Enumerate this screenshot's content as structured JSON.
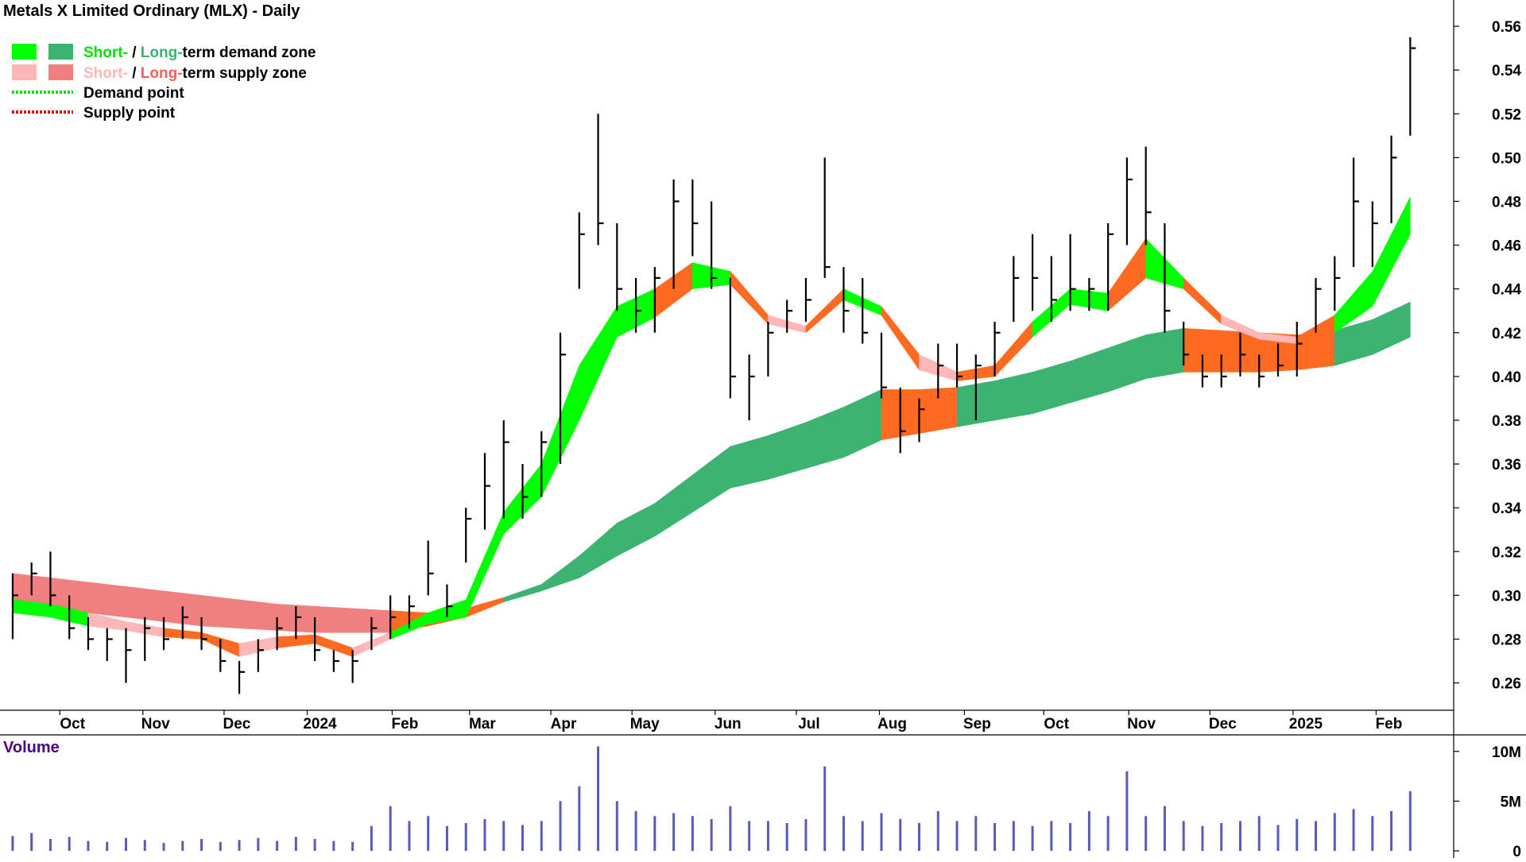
{
  "chart_data": {
    "type": "ohlc",
    "title": "Metals X Limited Ordinary (MLX) - Daily",
    "legend": [
      {
        "swatches": [
          "#00ff00",
          "#3cb371"
        ],
        "parts": [
          {
            "text": "Short-",
            "color": "#00e000"
          },
          {
            "text": " / ",
            "color": "#000000"
          },
          {
            "text": "Long-",
            "color": "#3cb371"
          },
          {
            "text": "term demand zone",
            "color": "#000000"
          }
        ]
      },
      {
        "swatches": [
          "#ffb6b6",
          "#f08080"
        ],
        "parts": [
          {
            "text": "Short-",
            "color": "#ffb6b6"
          },
          {
            "text": " / ",
            "color": "#000000"
          },
          {
            "text": "Long-",
            "color": "#f06060"
          },
          {
            "text": "term supply zone",
            "color": "#000000"
          }
        ]
      },
      {
        "line": "#00e000",
        "parts": [
          {
            "text": "Demand point",
            "color": "#000000"
          }
        ]
      },
      {
        "line": "#e00000",
        "parts": [
          {
            "text": "Supply point",
            "color": "#000000"
          }
        ]
      }
    ],
    "xlim": [
      -0.67,
      76.3
    ],
    "xticks": [
      {
        "value": 3,
        "label": "Oct"
      },
      {
        "value": 7.4,
        "label": "Nov"
      },
      {
        "value": 11.7,
        "label": "Dec"
      },
      {
        "value": 16.1,
        "label": "2024"
      },
      {
        "value": 20.6,
        "label": "Feb"
      },
      {
        "value": 24.7,
        "label": "Mar"
      },
      {
        "value": 29,
        "label": "Apr"
      },
      {
        "value": 33.3,
        "label": "May"
      },
      {
        "value": 37.7,
        "label": "Jun"
      },
      {
        "value": 42,
        "label": "Jul"
      },
      {
        "value": 46.4,
        "label": "Aug"
      },
      {
        "value": 50.9,
        "label": "Sep"
      },
      {
        "value": 55.1,
        "label": "Oct"
      },
      {
        "value": 59.6,
        "label": "Nov"
      },
      {
        "value": 63.9,
        "label": "Dec"
      },
      {
        "value": 68.3,
        "label": "2025"
      },
      {
        "value": 72.7,
        "label": "Feb"
      }
    ],
    "ylim": [
      0.2475,
      0.572
    ],
    "yticks": [
      0.26,
      0.28,
      {
        "value": 0.3,
        "label": "0.30"
      },
      0.32,
      0.34,
      0.36,
      0.38,
      {
        "value": 0.4,
        "label": "0.40"
      },
      0.42,
      0.44,
      0.46,
      0.48,
      {
        "value": 0.5,
        "label": "0.50"
      },
      0.52,
      0.54,
      0.56
    ],
    "high": [
      0.31,
      0.315,
      0.32,
      0.3,
      0.29,
      0.285,
      0.285,
      0.29,
      0.29,
      0.295,
      0.29,
      0.28,
      0.27,
      0.28,
      0.29,
      0.295,
      0.29,
      0.275,
      0.275,
      0.29,
      0.3,
      0.3,
      0.325,
      0.305,
      0.34,
      0.365,
      0.38,
      0.36,
      0.375,
      0.42,
      0.475,
      0.52,
      0.47,
      0.445,
      0.45,
      0.49,
      0.49,
      0.48,
      0.445,
      0.41,
      0.425,
      0.435,
      0.445,
      0.5,
      0.45,
      0.445,
      0.42,
      0.395,
      0.39,
      0.415,
      0.415,
      0.41,
      0.425,
      0.455,
      0.465,
      0.455,
      0.465,
      0.445,
      0.47,
      0.5,
      0.505,
      0.47,
      0.425,
      0.41,
      0.41,
      0.42,
      0.41,
      0.415,
      0.425,
      0.445,
      0.455,
      0.5,
      0.48,
      0.51,
      0.555
    ],
    "low": [
      0.28,
      0.3,
      0.295,
      0.28,
      0.275,
      0.27,
      0.26,
      0.27,
      0.275,
      0.28,
      0.275,
      0.265,
      0.255,
      0.265,
      0.275,
      0.28,
      0.27,
      0.265,
      0.26,
      0.275,
      0.28,
      0.285,
      0.3,
      0.29,
      0.315,
      0.33,
      0.335,
      0.335,
      0.345,
      0.36,
      0.44,
      0.46,
      0.43,
      0.42,
      0.42,
      0.44,
      0.455,
      0.44,
      0.39,
      0.38,
      0.4,
      0.42,
      0.425,
      0.445,
      0.42,
      0.415,
      0.39,
      0.365,
      0.37,
      0.39,
      0.395,
      0.38,
      0.4,
      0.425,
      0.43,
      0.425,
      0.43,
      0.43,
      0.43,
      0.46,
      0.46,
      0.42,
      0.405,
      0.395,
      0.395,
      0.4,
      0.395,
      0.4,
      0.4,
      0.42,
      0.43,
      0.45,
      0.45,
      0.47,
      0.51
    ],
    "close": [
      0.3,
      0.31,
      0.3,
      0.285,
      0.28,
      0.28,
      0.275,
      0.285,
      0.28,
      0.29,
      0.28,
      0.27,
      0.265,
      0.275,
      0.285,
      0.29,
      0.275,
      0.27,
      0.27,
      0.285,
      0.29,
      0.295,
      0.31,
      0.295,
      0.335,
      0.35,
      0.37,
      0.345,
      0.37,
      0.41,
      0.465,
      0.47,
      0.44,
      0.43,
      0.445,
      0.48,
      0.47,
      0.445,
      0.4,
      0.4,
      0.42,
      0.43,
      0.435,
      0.45,
      0.43,
      0.42,
      0.395,
      0.375,
      0.385,
      0.405,
      0.4,
      0.405,
      0.42,
      0.445,
      0.445,
      0.435,
      0.44,
      0.44,
      0.465,
      0.49,
      0.475,
      0.43,
      0.41,
      0.4,
      0.4,
      0.41,
      0.4,
      0.405,
      0.415,
      0.44,
      0.445,
      0.48,
      0.47,
      0.5,
      0.55
    ],
    "zones": {
      "x": [
        0,
        2,
        4,
        6,
        8,
        10,
        12,
        14,
        16,
        18,
        20,
        22,
        24,
        26,
        28,
        30,
        32,
        34,
        36,
        38,
        40,
        42,
        44,
        46,
        48,
        50,
        52,
        54,
        56,
        58,
        60,
        62,
        64,
        66,
        68,
        70,
        72,
        74
      ],
      "long_term": {
        "upper": [
          0.31,
          0.308,
          0.306,
          0.304,
          0.302,
          0.3,
          0.298,
          0.296,
          0.295,
          0.294,
          0.293,
          0.292,
          0.294,
          0.299,
          0.305,
          0.318,
          0.333,
          0.342,
          0.355,
          0.368,
          0.373,
          0.379,
          0.386,
          0.394,
          0.394,
          0.395,
          0.398,
          0.402,
          0.407,
          0.413,
          0.419,
          0.422,
          0.421,
          0.42,
          0.419,
          0.421,
          0.426,
          0.434
        ],
        "lower": [
          0.296,
          0.294,
          0.292,
          0.29,
          0.288,
          0.286,
          0.285,
          0.284,
          0.283,
          0.283,
          0.283,
          0.286,
          0.29,
          0.297,
          0.302,
          0.308,
          0.318,
          0.327,
          0.338,
          0.349,
          0.353,
          0.358,
          0.363,
          0.371,
          0.374,
          0.377,
          0.38,
          0.383,
          0.388,
          0.393,
          0.399,
          0.402,
          0.402,
          0.402,
          0.403,
          0.405,
          0.41,
          0.418
        ],
        "colors": [
          "#f08080",
          "#f08080",
          "#f08080",
          "#f08080",
          "#f08080",
          "#f08080",
          "#f08080",
          "#f08080",
          "#f08080",
          "#f08080",
          "#ff6a21",
          "#ff6a21",
          "#ff6a21",
          "#3cb371",
          "#3cb371",
          "#3cb371",
          "#3cb371",
          "#3cb371",
          "#3cb371",
          "#3cb371",
          "#3cb371",
          "#3cb371",
          "#3cb371",
          "#ff6a21",
          "#ff6a21",
          "#3cb371",
          "#3cb371",
          "#3cb371",
          "#3cb371",
          "#3cb371",
          "#3cb371",
          "#ff6a21",
          "#ff6a21",
          "#ff6a21",
          "#ff6a21",
          "#3cb371",
          "#3cb371",
          "#3cb371"
        ]
      },
      "short_term": {
        "upper": [
          0.298,
          0.296,
          0.292,
          0.288,
          0.285,
          0.283,
          0.278,
          0.281,
          0.282,
          0.276,
          0.283,
          0.292,
          0.298,
          0.338,
          0.36,
          0.405,
          0.432,
          0.44,
          0.452,
          0.448,
          0.428,
          0.423,
          0.44,
          0.432,
          0.41,
          0.402,
          0.405,
          0.425,
          0.44,
          0.438,
          0.463,
          0.445,
          0.428,
          0.42,
          0.418,
          0.428,
          0.448,
          0.482
        ],
        "lower": [
          0.292,
          0.29,
          0.286,
          0.284,
          0.281,
          0.28,
          0.272,
          0.276,
          0.278,
          0.272,
          0.28,
          0.287,
          0.29,
          0.328,
          0.345,
          0.38,
          0.418,
          0.427,
          0.44,
          0.442,
          0.424,
          0.42,
          0.435,
          0.428,
          0.403,
          0.398,
          0.4,
          0.418,
          0.433,
          0.43,
          0.445,
          0.44,
          0.424,
          0.417,
          0.415,
          0.42,
          0.432,
          0.465
        ],
        "colors": [
          "#00ff00",
          "#00ff00",
          "#ffb6b6",
          "#ffb6b6",
          "#ff6a21",
          "#ff6a21",
          "#ffb6b6",
          "#ff6a21",
          "#ff6a21",
          "#ffb6b6",
          "#00ff00",
          "#00ff00",
          "#00ff00",
          "#00ff00",
          "#00ff00",
          "#00ff00",
          "#00ff00",
          "#ff6a21",
          "#00ff00",
          "#ff6a21",
          "#ffb6b6",
          "#ff6a21",
          "#00ff00",
          "#ff6a21",
          "#ffb6b6",
          "#ff6a21",
          "#ff6a21",
          "#00ff00",
          "#00ff00",
          "#ff6a21",
          "#00ff00",
          "#ff6a21",
          "#ffb6b6",
          "#ffb6b6",
          "#ff6a21",
          "#00ff00",
          "#00ff00",
          "#00ff00"
        ]
      }
    },
    "volume": {
      "title": "Volume",
      "color": "#5a5ab8",
      "ylim": [
        0,
        11500000
      ],
      "yticks": [
        0,
        {
          "value": 5000000,
          "label": "5M"
        },
        {
          "value": 10000000,
          "label": "10M"
        }
      ],
      "values": [
        1500000,
        1800000,
        1200000,
        1400000,
        1000000,
        900000,
        1300000,
        1100000,
        800000,
        1000000,
        1200000,
        900000,
        1100000,
        1300000,
        1000000,
        1400000,
        1200000,
        1000000,
        900000,
        2500000,
        4500000,
        3000000,
        3500000,
        2500000,
        2800000,
        3200000,
        3000000,
        2600000,
        3000000,
        5000000,
        6500000,
        10500000,
        5000000,
        4000000,
        3500000,
        3800000,
        3500000,
        3200000,
        4500000,
        3000000,
        3000000,
        2800000,
        3200000,
        8500000,
        3500000,
        3000000,
        3800000,
        3200000,
        2800000,
        4000000,
        3000000,
        3500000,
        2800000,
        3000000,
        2500000,
        3000000,
        2800000,
        4000000,
        3500000,
        8000000,
        3500000,
        4500000,
        3000000,
        2500000,
        2800000,
        3000000,
        3500000,
        2600000,
        3200000,
        3000000,
        3800000,
        4200000,
        3500000,
        4000000,
        6000000
      ]
    }
  }
}
